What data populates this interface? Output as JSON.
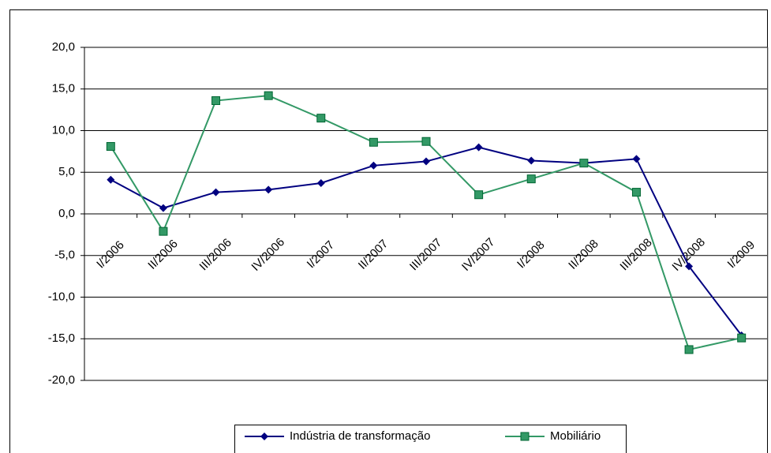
{
  "chart_data": {
    "type": "line",
    "categories": [
      "I/2006",
      "II/2006",
      "III/2006",
      "IV/2006",
      "I/2007",
      "II/2007",
      "III/2007",
      "IV/2007",
      "I/2008",
      "II/2008",
      "III/2008",
      "IV/2008",
      "I/2009"
    ],
    "series": [
      {
        "name": "Indústria de transformação",
        "color": "#000080",
        "marker": "diamond",
        "values": [
          4.1,
          0.7,
          2.6,
          2.9,
          3.7,
          5.8,
          6.3,
          8.0,
          6.4,
          6.1,
          6.6,
          -6.3,
          -14.6
        ]
      },
      {
        "name": "Mobiliário",
        "color": "#339966",
        "marker": "square",
        "values": [
          8.1,
          -2.1,
          13.6,
          14.2,
          11.5,
          8.6,
          8.7,
          2.3,
          4.2,
          6.1,
          2.6,
          -16.3,
          -14.9
        ]
      }
    ],
    "ylim": [
      -20,
      20
    ],
    "yticks": [
      {
        "value": -20,
        "label": "-20,0"
      },
      {
        "value": -15,
        "label": "-15,0"
      },
      {
        "value": -10,
        "label": "-10,0"
      },
      {
        "value": -5,
        "label": "-5,0"
      },
      {
        "value": 0,
        "label": "0,0"
      },
      {
        "value": 5,
        "label": "5,0"
      },
      {
        "value": 10,
        "label": "10,0"
      },
      {
        "value": 15,
        "label": "15,0"
      },
      {
        "value": 20,
        "label": "20,0"
      }
    ],
    "grid": true,
    "legend": "bottom"
  }
}
